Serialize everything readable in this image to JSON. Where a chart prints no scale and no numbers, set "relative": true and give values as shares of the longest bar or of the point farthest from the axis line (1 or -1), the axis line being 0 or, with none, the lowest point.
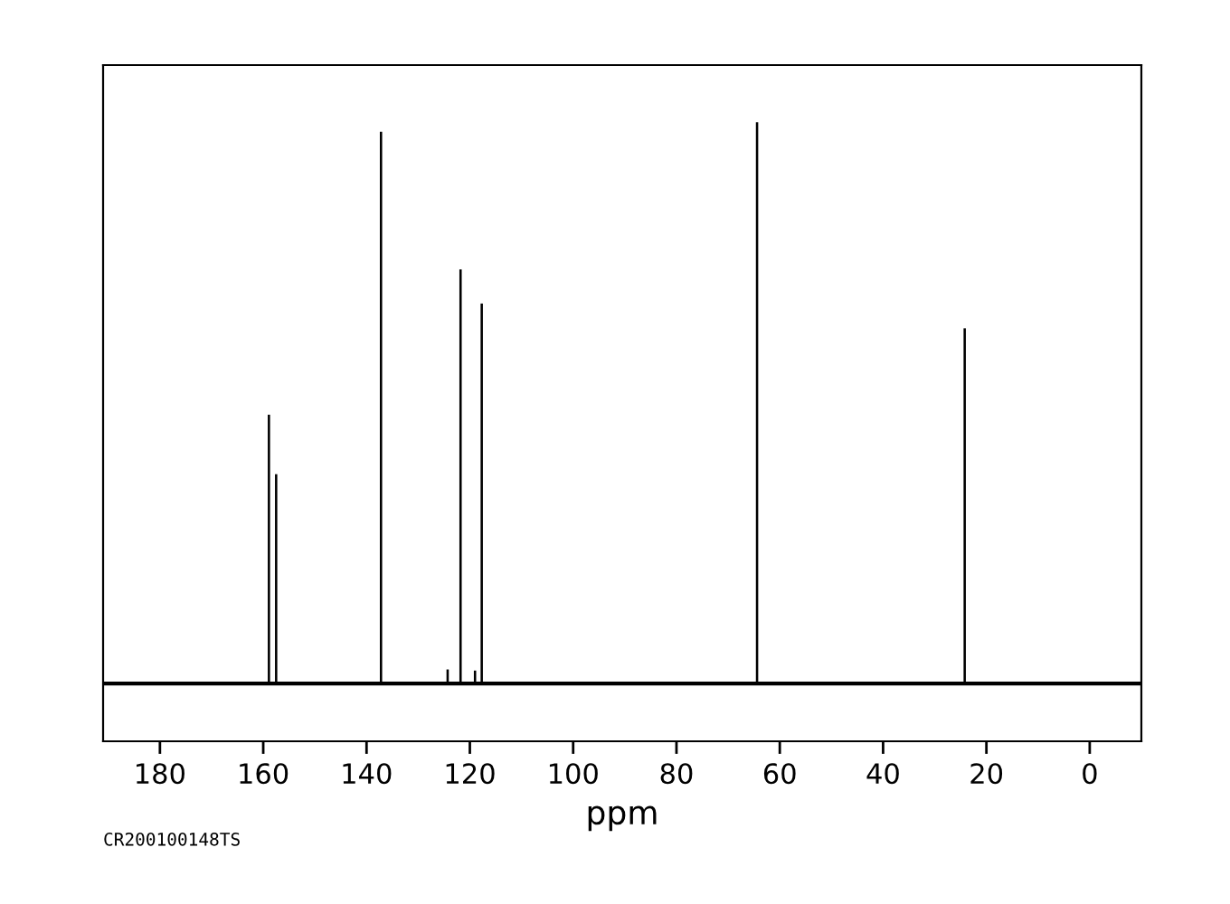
{
  "chart_data": {
    "type": "bar",
    "relative": true,
    "xlabel": "ppm",
    "xlim": [
      191,
      -10
    ],
    "xticks": [
      180,
      160,
      140,
      120,
      100,
      80,
      60,
      40,
      20,
      0
    ],
    "series": [
      {
        "color": "#000000",
        "x": [
          158.9,
          157.5,
          137.2,
          124.3,
          121.8,
          119.0,
          117.7,
          64.4,
          24.2
        ],
        "values": [
          0.479,
          0.373,
          0.983,
          0.025,
          0.738,
          0.023,
          0.677,
          1,
          0.633
        ]
      }
    ],
    "annotations": [
      "CR200100148TS"
    ],
    "grid": false,
    "legend": false
  }
}
